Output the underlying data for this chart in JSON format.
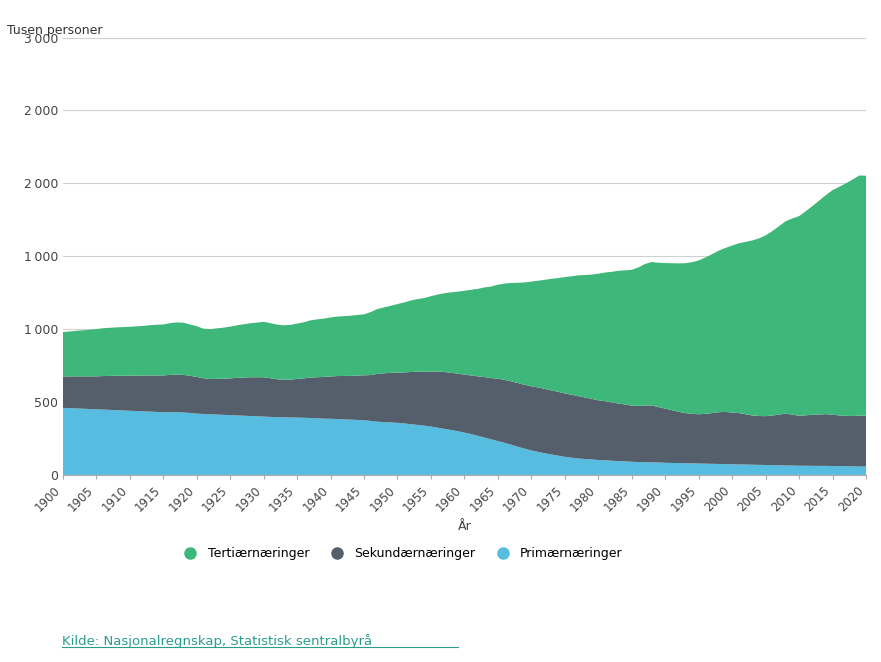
{
  "years": [
    1900,
    1901,
    1902,
    1903,
    1904,
    1905,
    1906,
    1907,
    1908,
    1909,
    1910,
    1911,
    1912,
    1913,
    1914,
    1915,
    1916,
    1917,
    1918,
    1919,
    1920,
    1921,
    1922,
    1923,
    1924,
    1925,
    1926,
    1927,
    1928,
    1929,
    1930,
    1931,
    1932,
    1933,
    1934,
    1935,
    1936,
    1937,
    1938,
    1939,
    1940,
    1941,
    1942,
    1943,
    1944,
    1945,
    1946,
    1947,
    1948,
    1949,
    1950,
    1951,
    1952,
    1953,
    1954,
    1955,
    1956,
    1957,
    1958,
    1959,
    1960,
    1961,
    1962,
    1963,
    1964,
    1965,
    1966,
    1967,
    1968,
    1969,
    1970,
    1971,
    1972,
    1973,
    1974,
    1975,
    1976,
    1977,
    1978,
    1979,
    1980,
    1981,
    1982,
    1983,
    1984,
    1985,
    1986,
    1987,
    1988,
    1989,
    1990,
    1991,
    1992,
    1993,
    1994,
    1995,
    1996,
    1997,
    1998,
    1999,
    2000,
    2001,
    2002,
    2003,
    2004,
    2005,
    2006,
    2007,
    2008,
    2009,
    2010,
    2011,
    2012,
    2013,
    2014,
    2015,
    2016,
    2017,
    2018,
    2019,
    2020
  ],
  "primary": [
    460,
    458,
    456,
    454,
    452,
    450,
    448,
    446,
    444,
    442,
    440,
    438,
    436,
    434,
    432,
    430,
    430,
    430,
    428,
    425,
    420,
    418,
    416,
    414,
    412,
    410,
    408,
    406,
    404,
    402,
    400,
    398,
    396,
    395,
    394,
    393,
    392,
    390,
    388,
    386,
    385,
    383,
    381,
    379,
    377,
    375,
    370,
    365,
    362,
    360,
    357,
    353,
    348,
    343,
    338,
    332,
    324,
    316,
    308,
    300,
    290,
    280,
    268,
    256,
    244,
    232,
    220,
    207,
    193,
    180,
    168,
    158,
    148,
    140,
    132,
    124,
    118,
    113,
    109,
    106,
    102,
    100,
    97,
    95,
    93,
    90,
    88,
    87,
    86,
    85,
    83,
    82,
    81,
    80,
    79,
    78,
    77,
    76,
    75,
    74,
    73,
    72,
    71,
    70,
    69,
    68,
    67,
    66,
    65,
    64,
    63,
    63,
    62,
    62,
    62,
    61,
    60,
    60,
    59,
    58,
    57
  ],
  "secondary": [
    215,
    218,
    220,
    222,
    224,
    226,
    230,
    233,
    236,
    238,
    240,
    243,
    246,
    248,
    250,
    252,
    256,
    258,
    258,
    255,
    252,
    245,
    242,
    245,
    248,
    252,
    258,
    262,
    266,
    268,
    270,
    265,
    260,
    258,
    260,
    265,
    270,
    278,
    282,
    286,
    290,
    295,
    298,
    300,
    305,
    308,
    315,
    328,
    335,
    340,
    345,
    350,
    358,
    365,
    370,
    378,
    385,
    390,
    392,
    395,
    398,
    402,
    408,
    415,
    420,
    428,
    432,
    435,
    437,
    438,
    440,
    442,
    442,
    440,
    438,
    435,
    432,
    428,
    422,
    416,
    410,
    406,
    400,
    395,
    390,
    385,
    385,
    390,
    390,
    380,
    372,
    362,
    352,
    344,
    340,
    338,
    342,
    348,
    355,
    358,
    355,
    352,
    345,
    338,
    335,
    335,
    340,
    348,
    355,
    350,
    342,
    346,
    350,
    352,
    355,
    352,
    348,
    345,
    345,
    348,
    350
  ],
  "tertiary": [
    305,
    308,
    312,
    316,
    320,
    324,
    328,
    330,
    332,
    334,
    336,
    338,
    340,
    345,
    348,
    350,
    355,
    358,
    358,
    352,
    348,
    340,
    342,
    346,
    350,
    355,
    360,
    365,
    370,
    375,
    380,
    378,
    375,
    373,
    375,
    380,
    385,
    392,
    397,
    400,
    405,
    408,
    410,
    413,
    415,
    418,
    432,
    445,
    452,
    460,
    470,
    480,
    490,
    498,
    505,
    516,
    528,
    540,
    552,
    562,
    575,
    588,
    600,
    615,
    628,
    645,
    660,
    675,
    688,
    702,
    718,
    732,
    748,
    765,
    780,
    798,
    812,
    828,
    840,
    852,
    868,
    882,
    896,
    910,
    920,
    932,
    950,
    970,
    984,
    990,
    998,
    1008,
    1018,
    1028,
    1040,
    1055,
    1072,
    1090,
    1108,
    1125,
    1145,
    1165,
    1182,
    1200,
    1218,
    1240,
    1265,
    1292,
    1320,
    1345,
    1370,
    1400,
    1432,
    1468,
    1502,
    1540,
    1568,
    1595,
    1622,
    1648,
    1645
  ],
  "color_primary": "#56bce0",
  "color_secondary": "#545f6b",
  "color_tertiary": "#3db87a",
  "ylabel": "Tusen personer",
  "xlabel": "År",
  "ylim": [
    0,
    3000
  ],
  "yticks": [
    0,
    500,
    1000,
    1500,
    2000,
    2500,
    3000
  ],
  "xtick_years": [
    1900,
    1905,
    1910,
    1915,
    1920,
    1925,
    1930,
    1935,
    1940,
    1945,
    1950,
    1955,
    1960,
    1965,
    1970,
    1975,
    1980,
    1985,
    1990,
    1995,
    2000,
    2005,
    2010,
    2015,
    2020
  ],
  "legend_labels": [
    "Tertiærnæringer",
    "Sekundærnæringer",
    "Primærnæringer"
  ],
  "source_text": "Kilde: Nasjonalregnskap, Statistisk sentralbyrå",
  "background_color": "#ffffff",
  "grid_color": "#d0d0d0"
}
